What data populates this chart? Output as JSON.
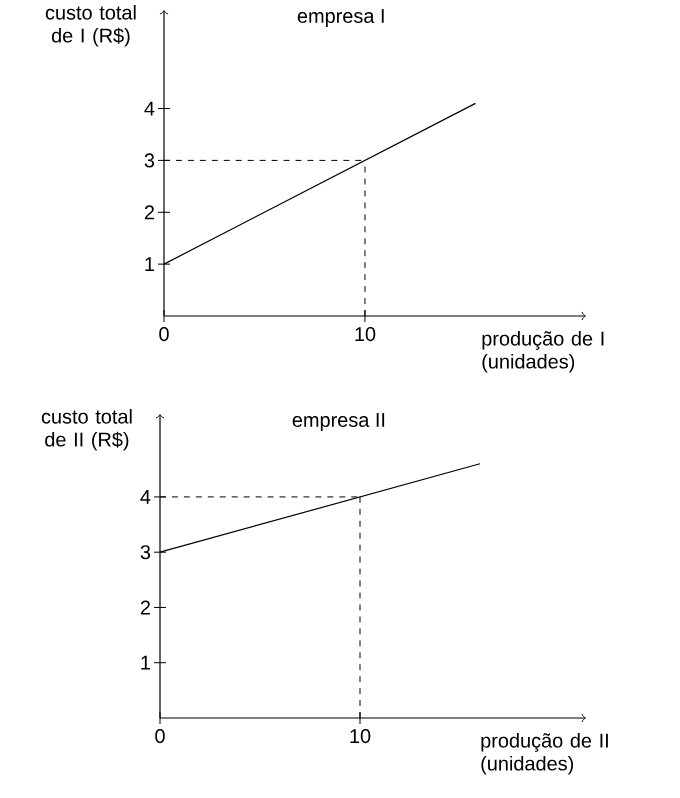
{
  "chart_data": [
    {
      "type": "line",
      "title": "empresa I",
      "ylabel": "custo total de I (R$)",
      "xlabel": "produção de I (unidades)",
      "xlim": [
        0,
        21
      ],
      "ylim": [
        0,
        5.9
      ],
      "xticks": [
        0,
        10
      ],
      "yticks": [
        1,
        2,
        3,
        4
      ],
      "line_style": "solid",
      "grid": false,
      "series": [
        {
          "color": "#000000",
          "x": [
            0,
            15.5
          ],
          "values": [
            1,
            4.1
          ]
        }
      ],
      "ref_lines": [
        {
          "axis": "x",
          "value": 10,
          "color": "#000000",
          "line_style": "dashed"
        },
        {
          "axis": "y",
          "value": 3,
          "color": "#000000",
          "line_style": "dashed"
        }
      ]
    },
    {
      "type": "line",
      "title": "empresa II",
      "ylabel": "custo total de II (R$)",
      "xlabel": "produção de II (unidades)",
      "xlim": [
        0,
        21.3
      ],
      "ylim": [
        0,
        5.5
      ],
      "xticks": [
        0,
        10
      ],
      "yticks": [
        1,
        2,
        3,
        4
      ],
      "line_style": "solid",
      "grid": false,
      "series": [
        {
          "color": "#000000",
          "x": [
            0,
            16
          ],
          "values": [
            3,
            4.6
          ]
        }
      ],
      "ref_lines": [
        {
          "axis": "x",
          "value": 10,
          "color": "#000000",
          "line_style": "dashed"
        },
        {
          "axis": "y",
          "value": 4,
          "color": "#000000",
          "line_style": "dashed"
        }
      ]
    }
  ]
}
